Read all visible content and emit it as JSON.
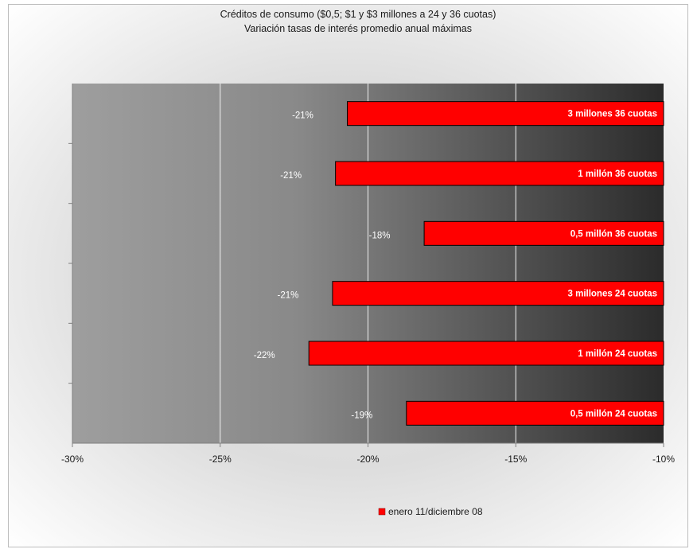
{
  "chart_data": {
    "type": "bar",
    "orientation": "horizontal",
    "title": "Créditos de consumo ($0,5; $1 y $3 millones a 24 y 36 cuotas)",
    "subtitle": "Variación tasas de interés promedio anual máximas",
    "categories": [
      "3 millones 36 cuotas",
      "1 millón 36 cuotas",
      "0,5 millón 36 cuotas",
      "3 millones 24 cuotas",
      "1 millón 24 cuotas",
      "0,5 millón 24 cuotas"
    ],
    "series": [
      {
        "name": "enero 11/diciembre 08",
        "values": [
          -20.7,
          -21.1,
          -18.1,
          -21.2,
          -22.0,
          -18.7
        ],
        "data_labels": [
          "-21%",
          "-21%",
          "-18%",
          "-21%",
          "-22%",
          "-19%"
        ],
        "color": "#ff0000"
      }
    ],
    "xlim": [
      -30,
      -10
    ],
    "x_ticks": [
      -30,
      -25,
      -20,
      -15,
      -10
    ],
    "x_tick_labels": [
      "-30%",
      "-25%",
      "-20%",
      "-15%",
      "-10%"
    ],
    "xlabel": "",
    "ylabel": "",
    "grid": "vertical",
    "legend_position": "bottom"
  }
}
